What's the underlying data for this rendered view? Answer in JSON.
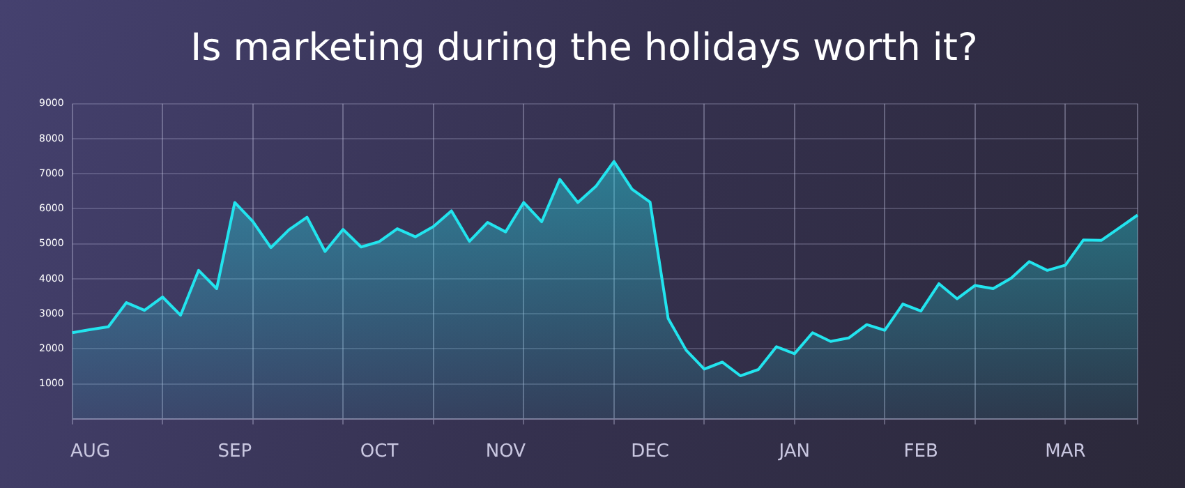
{
  "chart_data": {
    "type": "area",
    "title": "Is marketing during the holidays worth it?",
    "categories": [
      null,
      "AUG",
      null,
      null,
      null,
      null,
      null,
      null,
      null,
      "SEP",
      null,
      null,
      null,
      null,
      null,
      null,
      null,
      "OCT",
      null,
      null,
      null,
      null,
      null,
      null,
      "NOV",
      null,
      null,
      null,
      null,
      null,
      null,
      null,
      "DEC",
      null,
      null,
      null,
      null,
      null,
      null,
      null,
      "JAN",
      null,
      null,
      null,
      null,
      null,
      null,
      "FEB",
      null,
      null,
      null,
      null,
      null,
      null,
      null,
      "MAR",
      null,
      null,
      null,
      null
    ],
    "series": [
      {
        "color": "#22e4ee",
        "values": [
          2460,
          2550,
          2630,
          3320,
          3100,
          3480,
          2960,
          4240,
          3720,
          6180,
          5640,
          4890,
          5400,
          5760,
          4780,
          5410,
          4910,
          5060,
          5430,
          5200,
          5490,
          5940,
          5070,
          5610,
          5340,
          6180,
          5630,
          6840,
          6180,
          6640,
          7350,
          6560,
          6190,
          2870,
          1960,
          1420,
          1620,
          1230,
          1410,
          2060,
          1860,
          2460,
          2210,
          2310,
          2690,
          2530,
          3280,
          3080,
          3860,
          3430,
          3810,
          3720,
          4020,
          4490,
          4240,
          4390,
          5110,
          5100,
          5460,
          5820
        ]
      }
    ],
    "ylim": [
      0,
      9000
    ],
    "yticks": [
      {
        "value": 0,
        "label": null
      },
      1000,
      2000,
      3000,
      4000,
      5000,
      6000,
      7000,
      8000,
      9000
    ],
    "grid": true,
    "legend": false,
    "marker": "none",
    "line_style": "solid"
  }
}
